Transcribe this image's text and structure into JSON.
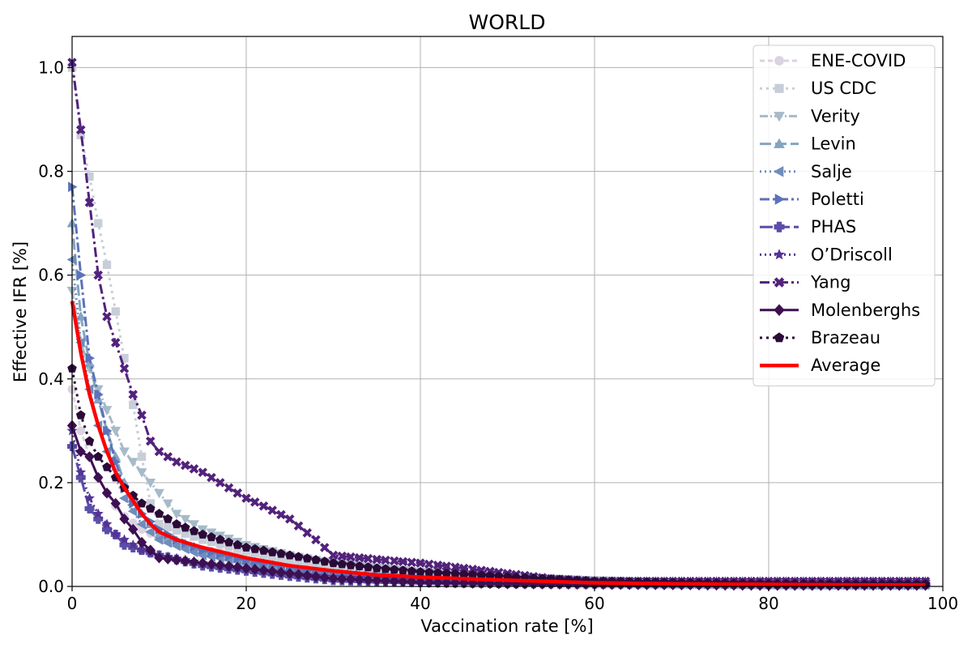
{
  "chart_data": {
    "type": "line",
    "title": "WORLD",
    "xlabel": "Vaccination rate [%]",
    "ylabel": "Effective IFR [%]",
    "xlim": [
      0,
      100
    ],
    "ylim": [
      0,
      1.06
    ],
    "grid": true,
    "legend_position": "top-right",
    "x_ticks": [
      "0",
      "20",
      "40",
      "60",
      "80",
      "100"
    ],
    "y_ticks": [
      "0.0",
      "0.2",
      "0.4",
      "0.6",
      "0.8",
      "1.0"
    ],
    "series": [
      {
        "name": "ENE-COVID",
        "color": "#dcd3e0",
        "marker": "circle",
        "dash": "6,4",
        "points": [
          [
            0,
            0.38
          ],
          [
            1,
            0.3
          ],
          [
            2,
            0.25
          ],
          [
            3,
            0.21
          ],
          [
            4,
            0.18
          ],
          [
            5,
            0.155
          ],
          [
            6,
            0.135
          ],
          [
            8,
            0.11
          ],
          [
            10,
            0.095
          ],
          [
            15,
            0.07
          ],
          [
            20,
            0.06
          ],
          [
            25,
            0.045
          ],
          [
            30,
            0.035
          ],
          [
            40,
            0.022
          ],
          [
            50,
            0.014
          ],
          [
            60,
            0.009
          ],
          [
            70,
            0.006
          ],
          [
            80,
            0.005
          ],
          [
            90,
            0.004
          ],
          [
            98,
            0.003
          ]
        ]
      },
      {
        "name": "US CDC",
        "color": "#c8ced8",
        "marker": "square",
        "dash": "3,5",
        "points": [
          [
            0,
            1.0
          ],
          [
            1,
            0.87
          ],
          [
            2,
            0.79
          ],
          [
            3,
            0.7
          ],
          [
            4,
            0.62
          ],
          [
            5,
            0.53
          ],
          [
            6,
            0.44
          ],
          [
            7,
            0.35
          ],
          [
            8,
            0.25
          ],
          [
            9,
            0.16
          ],
          [
            10,
            0.12
          ],
          [
            15,
            0.09
          ],
          [
            20,
            0.07
          ],
          [
            25,
            0.05
          ],
          [
            30,
            0.035
          ],
          [
            40,
            0.022
          ],
          [
            50,
            0.014
          ],
          [
            60,
            0.01
          ],
          [
            70,
            0.007
          ],
          [
            80,
            0.006
          ],
          [
            90,
            0.005
          ],
          [
            98,
            0.004
          ]
        ]
      },
      {
        "name": "Verity",
        "color": "#a6bac8",
        "marker": "tri-down",
        "dash": "10,3,2,3",
        "points": [
          [
            0,
            0.57
          ],
          [
            1,
            0.47
          ],
          [
            2,
            0.42
          ],
          [
            3,
            0.38
          ],
          [
            4,
            0.34
          ],
          [
            5,
            0.3
          ],
          [
            6,
            0.26
          ],
          [
            7,
            0.24
          ],
          [
            8,
            0.22
          ],
          [
            9,
            0.2
          ],
          [
            10,
            0.18
          ],
          [
            12,
            0.14
          ],
          [
            15,
            0.11
          ],
          [
            20,
            0.08
          ],
          [
            25,
            0.06
          ],
          [
            30,
            0.045
          ],
          [
            40,
            0.028
          ],
          [
            50,
            0.018
          ],
          [
            60,
            0.012
          ],
          [
            70,
            0.008
          ],
          [
            80,
            0.006
          ],
          [
            90,
            0.005
          ],
          [
            98,
            0.004
          ]
        ]
      },
      {
        "name": "Levin",
        "color": "#84a4c2",
        "marker": "tri-up",
        "dash": "14,5",
        "points": [
          [
            0,
            0.7
          ],
          [
            1,
            0.52
          ],
          [
            2,
            0.43
          ],
          [
            3,
            0.36
          ],
          [
            4,
            0.3
          ],
          [
            5,
            0.25
          ],
          [
            6,
            0.2
          ],
          [
            8,
            0.14
          ],
          [
            10,
            0.1
          ],
          [
            15,
            0.07
          ],
          [
            20,
            0.05
          ],
          [
            25,
            0.035
          ],
          [
            30,
            0.025
          ],
          [
            40,
            0.015
          ],
          [
            50,
            0.01
          ],
          [
            60,
            0.007
          ],
          [
            70,
            0.005
          ],
          [
            80,
            0.004
          ],
          [
            90,
            0.003
          ],
          [
            98,
            0.003
          ]
        ]
      },
      {
        "name": "Salje",
        "color": "#6f8dbd",
        "marker": "tri-left",
        "dash": "2,4",
        "points": [
          [
            0,
            0.63
          ],
          [
            1,
            0.47
          ],
          [
            2,
            0.38
          ],
          [
            3,
            0.31
          ],
          [
            4,
            0.26
          ],
          [
            5,
            0.21
          ],
          [
            6,
            0.17
          ],
          [
            8,
            0.12
          ],
          [
            10,
            0.09
          ],
          [
            15,
            0.06
          ],
          [
            20,
            0.045
          ],
          [
            25,
            0.032
          ],
          [
            30,
            0.022
          ],
          [
            40,
            0.013
          ],
          [
            50,
            0.009
          ],
          [
            60,
            0.006
          ],
          [
            70,
            0.005
          ],
          [
            80,
            0.004
          ],
          [
            90,
            0.003
          ],
          [
            98,
            0.003
          ]
        ]
      },
      {
        "name": "Poletti",
        "color": "#5c72ba",
        "marker": "tri-right",
        "dash": "12,4,3,4",
        "points": [
          [
            0,
            0.77
          ],
          [
            1,
            0.6
          ],
          [
            2,
            0.44
          ],
          [
            3,
            0.37
          ],
          [
            4,
            0.3
          ],
          [
            5,
            0.24
          ],
          [
            6,
            0.19
          ],
          [
            7,
            0.16
          ],
          [
            8,
            0.14
          ],
          [
            10,
            0.11
          ],
          [
            12,
            0.09
          ],
          [
            15,
            0.07
          ],
          [
            20,
            0.05
          ],
          [
            25,
            0.035
          ],
          [
            30,
            0.025
          ],
          [
            40,
            0.015
          ],
          [
            50,
            0.01
          ],
          [
            60,
            0.007
          ],
          [
            70,
            0.005
          ],
          [
            80,
            0.004
          ],
          [
            90,
            0.003
          ],
          [
            98,
            0.003
          ]
        ]
      },
      {
        "name": "PHAS",
        "color": "#5a4ea8",
        "marker": "plus",
        "dash": "16,5",
        "points": [
          [
            0,
            0.27
          ],
          [
            1,
            0.21
          ],
          [
            2,
            0.15
          ],
          [
            3,
            0.13
          ],
          [
            4,
            0.11
          ],
          [
            5,
            0.1
          ],
          [
            6,
            0.08
          ],
          [
            8,
            0.07
          ],
          [
            10,
            0.06
          ],
          [
            15,
            0.04
          ],
          [
            20,
            0.03
          ],
          [
            25,
            0.02
          ],
          [
            30,
            0.012
          ],
          [
            40,
            0.008
          ],
          [
            50,
            0.006
          ],
          [
            60,
            0.005
          ],
          [
            70,
            0.005
          ],
          [
            80,
            0.004
          ],
          [
            90,
            0.004
          ],
          [
            98,
            0.004
          ]
        ]
      },
      {
        "name": "O’Driscoll",
        "color": "#553394",
        "marker": "star",
        "dash": "2,4",
        "points": [
          [
            0,
            0.3
          ],
          [
            1,
            0.22
          ],
          [
            2,
            0.17
          ],
          [
            3,
            0.14
          ],
          [
            4,
            0.12
          ],
          [
            5,
            0.1
          ],
          [
            6,
            0.09
          ],
          [
            8,
            0.07
          ],
          [
            10,
            0.06
          ],
          [
            15,
            0.045
          ],
          [
            20,
            0.035
          ],
          [
            25,
            0.025
          ],
          [
            30,
            0.018
          ],
          [
            40,
            0.012
          ],
          [
            50,
            0.01
          ],
          [
            60,
            0.009
          ],
          [
            70,
            0.009
          ],
          [
            80,
            0.009
          ],
          [
            90,
            0.009
          ],
          [
            98,
            0.009
          ]
        ]
      },
      {
        "name": "Yang",
        "color": "#52227c",
        "marker": "x",
        "dash": "12,4,3,4",
        "points": [
          [
            0,
            1.01
          ],
          [
            1,
            0.88
          ],
          [
            2,
            0.74
          ],
          [
            3,
            0.6
          ],
          [
            4,
            0.52
          ],
          [
            5,
            0.47
          ],
          [
            6,
            0.42
          ],
          [
            7,
            0.37
          ],
          [
            8,
            0.33
          ],
          [
            9,
            0.28
          ],
          [
            10,
            0.26
          ],
          [
            12,
            0.24
          ],
          [
            15,
            0.22
          ],
          [
            18,
            0.19
          ],
          [
            20,
            0.17
          ],
          [
            22,
            0.155
          ],
          [
            25,
            0.13
          ],
          [
            28,
            0.09
          ],
          [
            30,
            0.06
          ],
          [
            35,
            0.052
          ],
          [
            40,
            0.045
          ],
          [
            45,
            0.035
          ],
          [
            50,
            0.025
          ],
          [
            55,
            0.015
          ],
          [
            60,
            0.01
          ],
          [
            70,
            0.01
          ],
          [
            80,
            0.01
          ],
          [
            90,
            0.01
          ],
          [
            98,
            0.01
          ]
        ]
      },
      {
        "name": "Molenberghs",
        "color": "#3d1052",
        "marker": "diamond",
        "dash": "",
        "points": [
          [
            0,
            0.31
          ],
          [
            1,
            0.26
          ],
          [
            2,
            0.25
          ],
          [
            3,
            0.21
          ],
          [
            4,
            0.18
          ],
          [
            5,
            0.16
          ],
          [
            6,
            0.13
          ],
          [
            7,
            0.11
          ],
          [
            8,
            0.085
          ],
          [
            9,
            0.07
          ],
          [
            10,
            0.055
          ],
          [
            15,
            0.045
          ],
          [
            20,
            0.035
          ],
          [
            25,
            0.025
          ],
          [
            30,
            0.015
          ],
          [
            40,
            0.008
          ],
          [
            50,
            0.005
          ],
          [
            60,
            0.004
          ],
          [
            70,
            0.003
          ],
          [
            80,
            0.002
          ],
          [
            90,
            0.002
          ],
          [
            98,
            0.002
          ]
        ]
      },
      {
        "name": "Brazeau",
        "color": "#2b0a38",
        "marker": "pentagon",
        "dash": "3,5",
        "points": [
          [
            0,
            0.42
          ],
          [
            1,
            0.33
          ],
          [
            2,
            0.28
          ],
          [
            3,
            0.25
          ],
          [
            4,
            0.23
          ],
          [
            5,
            0.21
          ],
          [
            6,
            0.19
          ],
          [
            7,
            0.175
          ],
          [
            8,
            0.16
          ],
          [
            10,
            0.14
          ],
          [
            12,
            0.12
          ],
          [
            15,
            0.1
          ],
          [
            18,
            0.085
          ],
          [
            20,
            0.075
          ],
          [
            25,
            0.06
          ],
          [
            30,
            0.045
          ],
          [
            35,
            0.035
          ],
          [
            40,
            0.028
          ],
          [
            50,
            0.018
          ],
          [
            60,
            0.01
          ],
          [
            70,
            0.007
          ],
          [
            80,
            0.005
          ],
          [
            90,
            0.004
          ],
          [
            98,
            0.004
          ]
        ]
      },
      {
        "name": "Average",
        "color": "#ff0000",
        "marker": "none",
        "dash": "",
        "width": 4.5,
        "points": [
          [
            0,
            0.55
          ],
          [
            1,
            0.45
          ],
          [
            2,
            0.37
          ],
          [
            3,
            0.31
          ],
          [
            4,
            0.26
          ],
          [
            5,
            0.22
          ],
          [
            6,
            0.19
          ],
          [
            7,
            0.165
          ],
          [
            8,
            0.14
          ],
          [
            9,
            0.12
          ],
          [
            10,
            0.105
          ],
          [
            12,
            0.09
          ],
          [
            15,
            0.075
          ],
          [
            20,
            0.055
          ],
          [
            25,
            0.04
          ],
          [
            30,
            0.03
          ],
          [
            35,
            0.022
          ],
          [
            40,
            0.018
          ],
          [
            50,
            0.012
          ],
          [
            60,
            0.007
          ],
          [
            70,
            0.005
          ],
          [
            80,
            0.004
          ],
          [
            90,
            0.003
          ],
          [
            98,
            0.003
          ]
        ]
      }
    ]
  }
}
